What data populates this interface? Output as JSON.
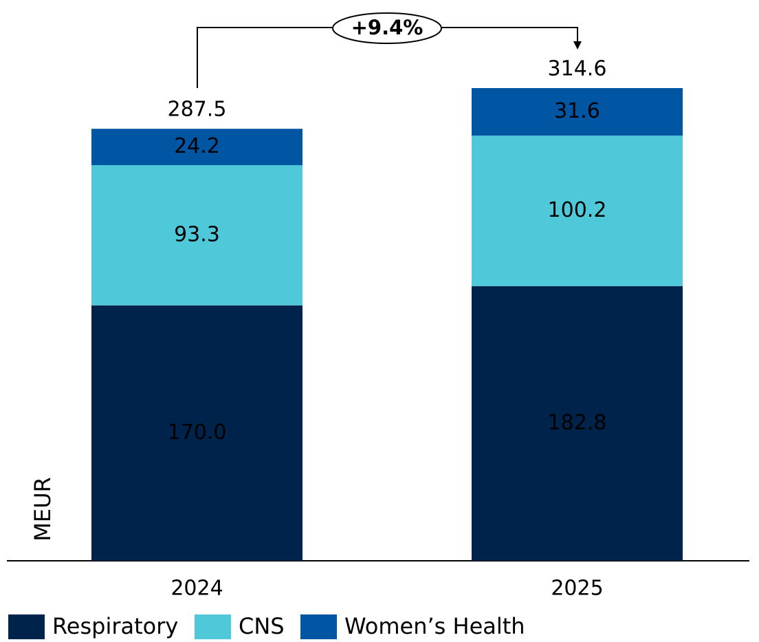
{
  "chart_data": {
    "type": "stacked_bar",
    "categories": [
      "2024",
      "2025"
    ],
    "series": [
      {
        "name": "Respiratory",
        "color": "#00234b",
        "values": [
          170.0,
          182.8
        ],
        "value_labels": [
          "170.0",
          "182.8"
        ],
        "label_color": "#ffffff"
      },
      {
        "name": "CNS",
        "color": "#4fc9d9",
        "values": [
          93.3,
          100.2
        ],
        "label_color": "#000000"
      },
      {
        "name": "Women’s Health",
        "color": "#0056a3",
        "values": [
          24.2,
          31.6
        ],
        "label_color": "#ffffff"
      }
    ],
    "totals": [
      287.5,
      314.6
    ],
    "annotation": "+9.4%",
    "y_label": "MEUR"
  }
}
